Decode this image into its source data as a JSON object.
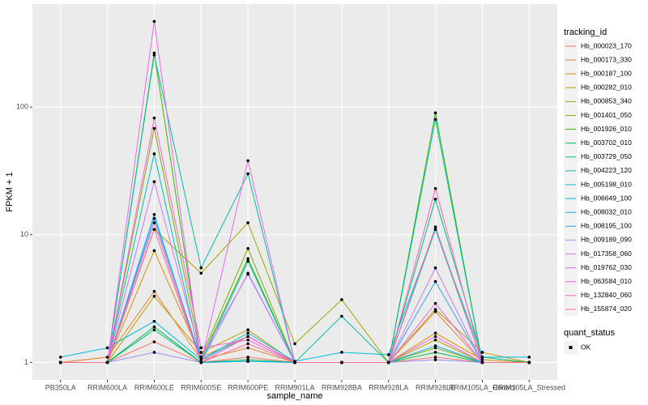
{
  "chart_data": {
    "type": "line",
    "x_label": "sample_name",
    "y_label": "FPKM + 1",
    "categories": [
      "PB350LA",
      "RRIM600LA",
      "RRIM600LE",
      "RRIM600SE",
      "RRIM600PE",
      "RRIM901LA",
      "RRIM928BA",
      "RRIM928LA",
      "RRIM928LE",
      "RRIM105LA_Control",
      "RRIM105LA_Stressed"
    ],
    "log_scale": true,
    "ylim": [
      0.73,
      640
    ],
    "yticks": [
      1,
      10,
      100
    ],
    "grid": true,
    "legend_title": "tracking_id",
    "legend_position": "right",
    "point_legend": {
      "title": "quant_status",
      "entries": [
        "OK"
      ]
    },
    "point_color": "#000000",
    "series": [
      {
        "name": "Hb_000023_170",
        "color": "#F8766D",
        "values": [
          1,
          1,
          1.45,
          1,
          1.1,
          1,
          1,
          1,
          1.1,
          1,
          1
        ]
      },
      {
        "name": "Hb_000173_330",
        "color": "#EA8331",
        "values": [
          1,
          1.1,
          3.6,
          1.05,
          1.3,
          1,
          1,
          1,
          2.5,
          1,
          1
        ]
      },
      {
        "name": "Hb_000187_100",
        "color": "#D89000",
        "values": [
          1,
          1,
          7.5,
          1.1,
          1.6,
          1,
          1,
          1,
          1.7,
          1.05,
          1
        ]
      },
      {
        "name": "Hb_000282_010",
        "color": "#C09B00",
        "values": [
          1,
          1,
          3.3,
          1.2,
          1.8,
          1,
          1,
          1,
          2.6,
          1.2,
          1
        ]
      },
      {
        "name": "Hb_000853_340",
        "color": "#A3A500",
        "values": [
          1,
          1,
          11,
          5,
          12.4,
          1.4,
          3.1,
          1,
          1.5,
          1,
          1
        ]
      },
      {
        "name": "Hb_001401_050",
        "color": "#7CAE00",
        "values": [
          1,
          1,
          68,
          1.1,
          7.8,
          1,
          1,
          1,
          1.3,
          1,
          1
        ]
      },
      {
        "name": "Hb_001926_010",
        "color": "#39B600",
        "values": [
          1,
          1,
          265,
          1.05,
          6.5,
          1,
          1,
          1,
          90,
          1,
          1
        ]
      },
      {
        "name": "Hb_003702_010",
        "color": "#00BB4E",
        "values": [
          1,
          1,
          1.9,
          1,
          1.05,
          1,
          1,
          1,
          1.2,
          1,
          1
        ]
      },
      {
        "name": "Hb_003729_050",
        "color": "#00BF7D",
        "values": [
          1,
          1,
          1.8,
          1,
          1.02,
          1,
          1,
          1,
          19,
          1.1,
          1
        ]
      },
      {
        "name": "Hb_004223_120",
        "color": "#00C1A3",
        "values": [
          1,
          1,
          255,
          5.5,
          30,
          1,
          2.3,
          1,
          80,
          1,
          1
        ]
      },
      {
        "name": "Hb_005198_010",
        "color": "#00BFC4",
        "values": [
          1,
          1,
          43,
          1,
          6.2,
          1,
          1,
          1,
          11,
          1,
          1
        ]
      },
      {
        "name": "Hb_006649_100",
        "color": "#00BAE0",
        "values": [
          1.1,
          1.3,
          2.1,
          1.05,
          1.7,
          1.02,
          1.2,
          1.15,
          11,
          1.1,
          1.1
        ]
      },
      {
        "name": "Hb_008032_010",
        "color": "#00B0F6",
        "values": [
          1,
          1,
          14.4,
          1,
          1.02,
          1,
          1,
          1,
          1.35,
          1,
          1
        ]
      },
      {
        "name": "Hb_008195_100",
        "color": "#35A2FF",
        "values": [
          1,
          1,
          13.4,
          1.05,
          1.6,
          1,
          1,
          1,
          4.3,
          1,
          1
        ]
      },
      {
        "name": "Hb_009189_090",
        "color": "#9590FF",
        "values": [
          1,
          1,
          1.2,
          1,
          5,
          1,
          1,
          1,
          1.05,
          1,
          1
        ]
      },
      {
        "name": "Hb_017358_060",
        "color": "#C77CFF",
        "values": [
          1,
          1,
          26,
          1.1,
          4.9,
          1,
          1,
          1,
          5.5,
          1,
          1
        ]
      },
      {
        "name": "Hb_019762_030",
        "color": "#E76BF3",
        "values": [
          1,
          1,
          468,
          1,
          38,
          1,
          1,
          1,
          2.9,
          1,
          1
        ]
      },
      {
        "name": "Hb_063584_010",
        "color": "#FA62DB",
        "values": [
          1,
          1,
          82,
          1.3,
          1.5,
          1,
          1,
          1,
          1.6,
          1,
          1
        ]
      },
      {
        "name": "Hb_132840_060",
        "color": "#FF62BC",
        "values": [
          1,
          1,
          12.4,
          1,
          1.6,
          1,
          1,
          1,
          23,
          1,
          1
        ]
      },
      {
        "name": "Hb_155874_020",
        "color": "#FF6C91",
        "values": [
          1,
          1,
          11,
          1,
          1.4,
          1,
          1,
          1,
          11.5,
          1,
          1
        ]
      }
    ]
  }
}
